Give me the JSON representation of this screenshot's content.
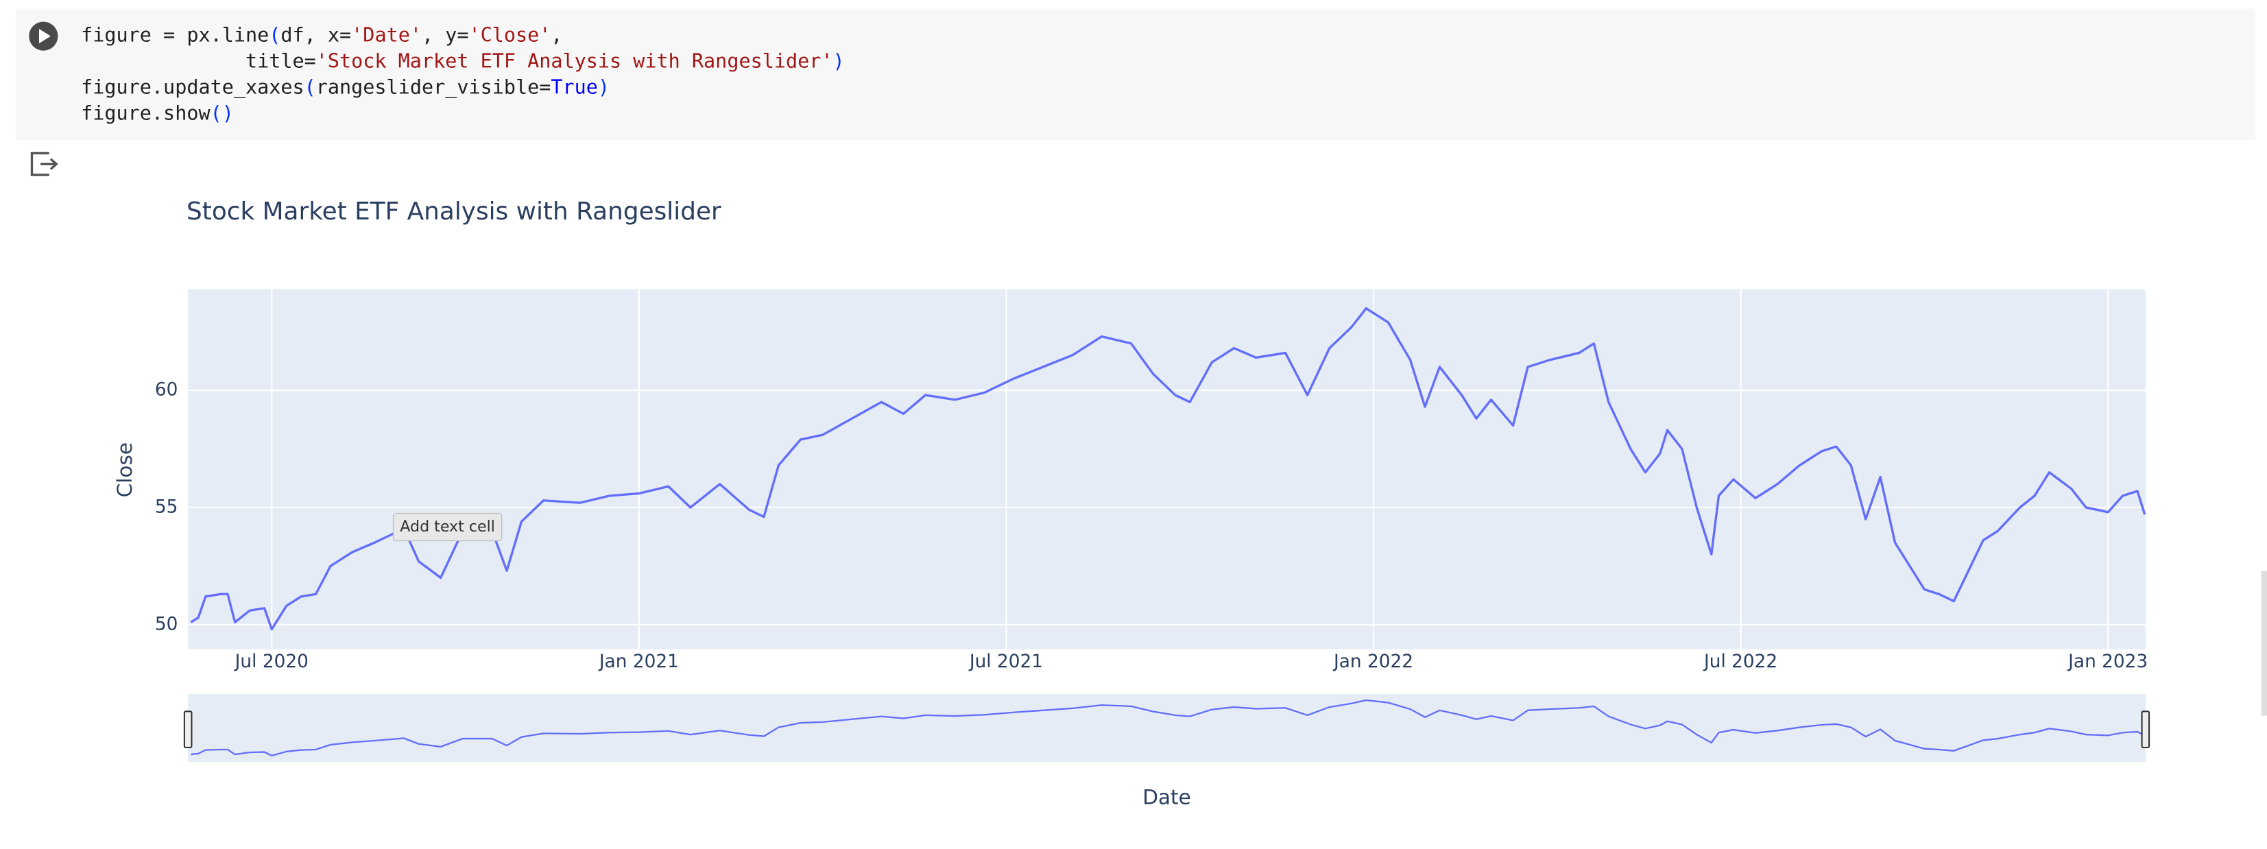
{
  "code": {
    "lines": [
      "figure = px.line(df, x='Date', y='Close',",
      "              title='Stock Market ETF Analysis with Rangeslider')",
      "figure.update_xaxes(rangeslider_visible=True)",
      "figure.show()"
    ]
  },
  "tooltip": "Add text cell",
  "chart_data": {
    "type": "line",
    "title": "Stock Market ETF Analysis with Rangeslider",
    "x_label": "Date",
    "y_label": "Close",
    "color": "#636efa",
    "grid": true,
    "rangeslider": true,
    "xlim": [
      2020.386,
      2023.051
    ],
    "ylim": [
      48.95,
      64.32
    ],
    "xticks": [
      {
        "value": 2020.5,
        "label": "Jul 2020"
      },
      {
        "value": 2021.0,
        "label": "Jan 2021"
      },
      {
        "value": 2021.5,
        "label": "Jul 2021"
      },
      {
        "value": 2022.0,
        "label": "Jan 2022"
      },
      {
        "value": 2022.5,
        "label": "Jul 2022"
      },
      {
        "value": 2023.0,
        "label": "Jan 2023"
      }
    ],
    "yticks": [
      50,
      55,
      60
    ],
    "x": [
      2020.39,
      2020.4,
      2020.41,
      2020.43,
      2020.44,
      2020.45,
      2020.47,
      2020.49,
      2020.5,
      2020.52,
      2020.54,
      2020.56,
      2020.58,
      2020.61,
      2020.64,
      2020.68,
      2020.7,
      2020.73,
      2020.76,
      2020.8,
      2020.82,
      2020.84,
      2020.87,
      2020.92,
      2020.96,
      2021.0,
      2021.04,
      2021.07,
      2021.11,
      2021.15,
      2021.17,
      2021.19,
      2021.22,
      2021.25,
      2021.29,
      2021.33,
      2021.36,
      2021.39,
      2021.43,
      2021.47,
      2021.51,
      2021.55,
      2021.59,
      2021.63,
      2021.67,
      2021.7,
      2021.73,
      2021.75,
      2021.78,
      2021.81,
      2021.84,
      2021.88,
      2021.91,
      2021.94,
      2021.97,
      2021.99,
      2022.02,
      2022.05,
      2022.07,
      2022.09,
      2022.12,
      2022.14,
      2022.16,
      2022.19,
      2022.21,
      2022.24,
      2022.28,
      2022.3,
      2022.32,
      2022.35,
      2022.37,
      2022.39,
      2022.4,
      2022.42,
      2022.44,
      2022.46,
      2022.47,
      2022.49,
      2022.52,
      2022.55,
      2022.58,
      2022.61,
      2022.63,
      2022.65,
      2022.67,
      2022.69,
      2022.71,
      2022.73,
      2022.75,
      2022.77,
      2022.79,
      2022.81,
      2022.83,
      2022.85,
      2022.88,
      2022.9,
      2022.92,
      2022.95,
      2022.97,
      2023.0,
      2023.02,
      2023.04,
      2023.05
    ],
    "values": [
      50.1,
      50.3,
      51.2,
      51.3,
      51.3,
      50.1,
      50.6,
      50.7,
      49.8,
      50.8,
      51.2,
      51.3,
      52.5,
      53.1,
      53.5,
      54.1,
      52.7,
      52.0,
      54.0,
      54.0,
      52.3,
      54.4,
      55.3,
      55.2,
      55.5,
      55.6,
      55.9,
      55.0,
      56.0,
      54.9,
      54.6,
      56.8,
      57.9,
      58.1,
      58.8,
      59.5,
      59.0,
      59.8,
      59.6,
      59.9,
      60.5,
      61.0,
      61.5,
      62.3,
      62.0,
      60.7,
      59.8,
      59.5,
      61.2,
      61.8,
      61.4,
      61.6,
      59.8,
      61.8,
      62.7,
      63.5,
      62.9,
      61.3,
      59.3,
      61.0,
      59.8,
      58.8,
      59.6,
      58.5,
      61.0,
      61.3,
      61.6,
      62.0,
      59.5,
      57.5,
      56.5,
      57.3,
      58.3,
      57.5,
      55.0,
      53.0,
      55.5,
      56.2,
      55.4,
      56.0,
      56.8,
      57.4,
      57.6,
      56.8,
      54.5,
      56.3,
      53.5,
      52.5,
      51.5,
      51.3,
      51.0,
      52.3,
      53.6,
      54.0,
      55.0,
      55.5,
      56.5,
      55.8,
      55.0,
      54.8,
      55.5,
      55.7,
      54.7
    ]
  }
}
